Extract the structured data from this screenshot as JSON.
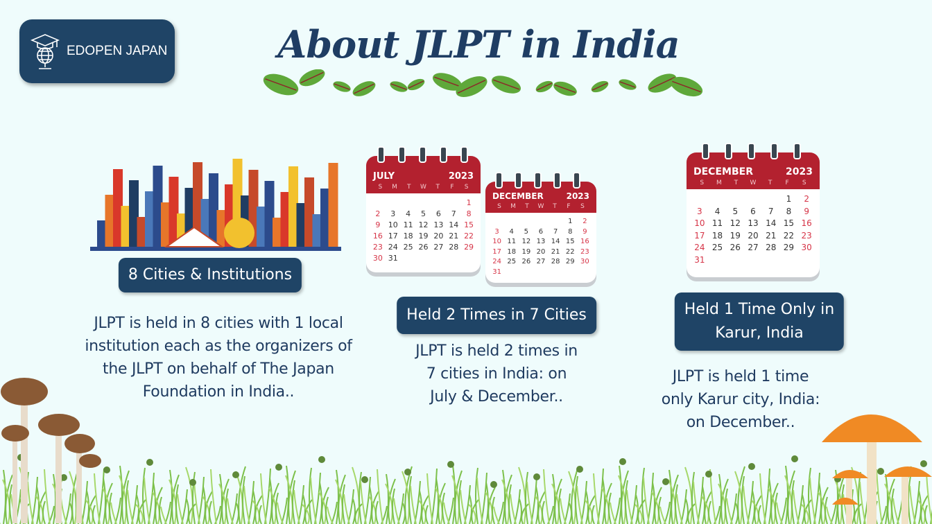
{
  "logo": {
    "text": "EDOPEN JAPAN",
    "icon": "graduation-globe-icon"
  },
  "title": "About JLPT in India",
  "colors": {
    "navy": "#1f4466",
    "calendar_red": "#b3212f",
    "background": "#effcfc"
  },
  "weekdays": [
    "S",
    "M",
    "T",
    "W",
    "T",
    "F",
    "S"
  ],
  "columns": [
    {
      "label": "8 Cities & Institutions",
      "desc": [
        "JLPT is held in 8 cities with 1 local",
        "institution each as the organizers of",
        "the JLPT on behalf of The Japan",
        "Foundation in India.."
      ]
    },
    {
      "label": "Held 2 Times in 7 Cities",
      "desc": [
        "JLPT is held 2 times in",
        "7 cities in India: on",
        "July & December.."
      ]
    },
    {
      "label_lines": [
        "Held 1 Time Only in",
        "Karur, India"
      ],
      "desc": [
        "JLPT is held 1 time",
        "only Karur city, India:",
        "on December.."
      ]
    }
  ],
  "calendars": {
    "july": {
      "month": "JULY",
      "year": "2023",
      "start": 6,
      "days": 31
    },
    "december": {
      "month": "DECEMBER",
      "year": "2023",
      "start": 5,
      "days": 31
    }
  }
}
